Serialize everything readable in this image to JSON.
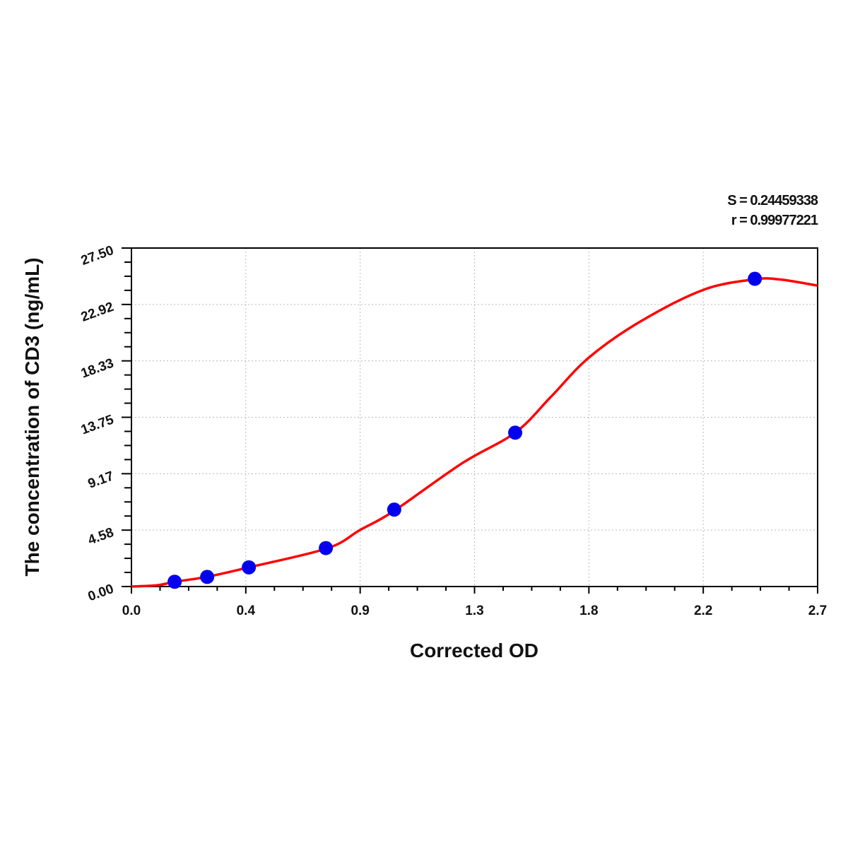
{
  "chart_data": {
    "type": "scatter",
    "title": "",
    "xlabel": "Corrected OD",
    "ylabel": "The concentration of CD3 (ng/mL)",
    "xlim": [
      0,
      2.7
    ],
    "ylim": [
      0,
      27.5
    ],
    "x_ticks": [
      "0.0",
      "0.4",
      "0.9",
      "1.3",
      "1.8",
      "2.2",
      "2.7"
    ],
    "y_ticks": [
      "0.00",
      "4.58",
      "9.17",
      "13.75",
      "18.33",
      "22.92",
      "27.50"
    ],
    "grid": true,
    "stats": [
      "S = 0.24459338",
      "r = 0.99977221"
    ],
    "points": {
      "color": "#0000ee",
      "x": [
        0.17,
        0.298,
        0.462,
        0.765,
        1.034,
        1.51,
        2.453
      ],
      "y": [
        0.39,
        0.78,
        1.56,
        3.125,
        6.25,
        12.5,
        25
      ]
    },
    "fit_curve": {
      "color": "#ff0000",
      "x": [
        0,
        0.1,
        0.17,
        0.3,
        0.46,
        0.77,
        0.9,
        1.03,
        1.3,
        1.51,
        1.65,
        1.8,
        2.0,
        2.25,
        2.45,
        2.55,
        2.7
      ],
      "y": [
        0,
        0.1,
        0.38,
        0.8,
        1.55,
        3.1,
        4.6,
        6.1,
        10.0,
        12.5,
        15.4,
        18.6,
        21.5,
        24.1,
        24.95,
        24.95,
        24.45
      ]
    }
  }
}
